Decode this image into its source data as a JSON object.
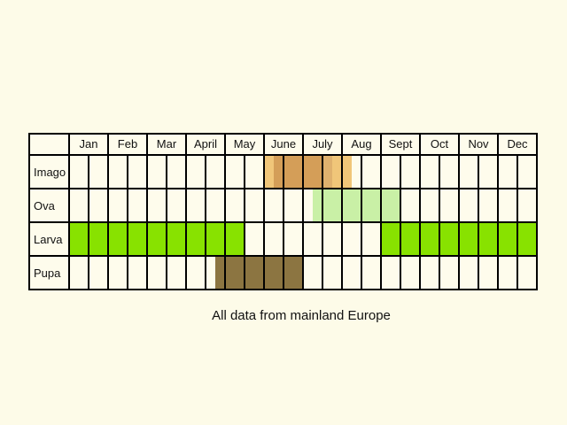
{
  "months": [
    "Jan",
    "Feb",
    "Mar",
    "April",
    "May",
    "June",
    "July",
    "Aug",
    "Sept",
    "Oct",
    "Nov",
    "Dec"
  ],
  "caption": "All data from mainland Europe",
  "colors": {
    "background": "#fdfbe8",
    "cell": "#fefcec",
    "grid": "#000000",
    "larva": "#88e200",
    "ova": "#c9f0a6",
    "pupa": "#8c7541",
    "imago_dark": "#d49e58",
    "imago_mid": "#dfb16e",
    "imago_light": "#f0c679"
  },
  "stages": [
    {
      "label": "Imago",
      "bands": [
        {
          "start": 6.0,
          "end": 6.25,
          "color": "imago_light"
        },
        {
          "start": 6.25,
          "end": 7.5,
          "color": "imago_dark"
        },
        {
          "start": 7.5,
          "end": 7.75,
          "color": "imago_mid"
        },
        {
          "start": 7.75,
          "end": 8.25,
          "color": "imago_light"
        }
      ]
    },
    {
      "label": "Ova",
      "bands": [
        {
          "start": 7.25,
          "end": 9.5,
          "color": "ova"
        }
      ]
    },
    {
      "label": "Larva",
      "bands": [
        {
          "start": 1.0,
          "end": 5.5,
          "color": "larva"
        },
        {
          "start": 9.0,
          "end": 13.0,
          "color": "larva"
        }
      ]
    },
    {
      "label": "Pupa",
      "bands": [
        {
          "start": 4.75,
          "end": 7.0,
          "color": "pupa"
        }
      ]
    }
  ]
}
